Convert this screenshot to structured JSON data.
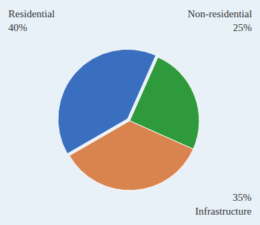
{
  "chart_data": {
    "type": "pie",
    "categories": [
      "Residential",
      "Non-residential",
      "Infrastructure"
    ],
    "values": [
      40,
      25,
      35
    ],
    "value_labels": [
      "40%",
      "25%",
      "35%"
    ],
    "data_labels": true,
    "colors": [
      "#3a6fc0",
      "#2f9a3c",
      "#d9834e"
    ]
  }
}
